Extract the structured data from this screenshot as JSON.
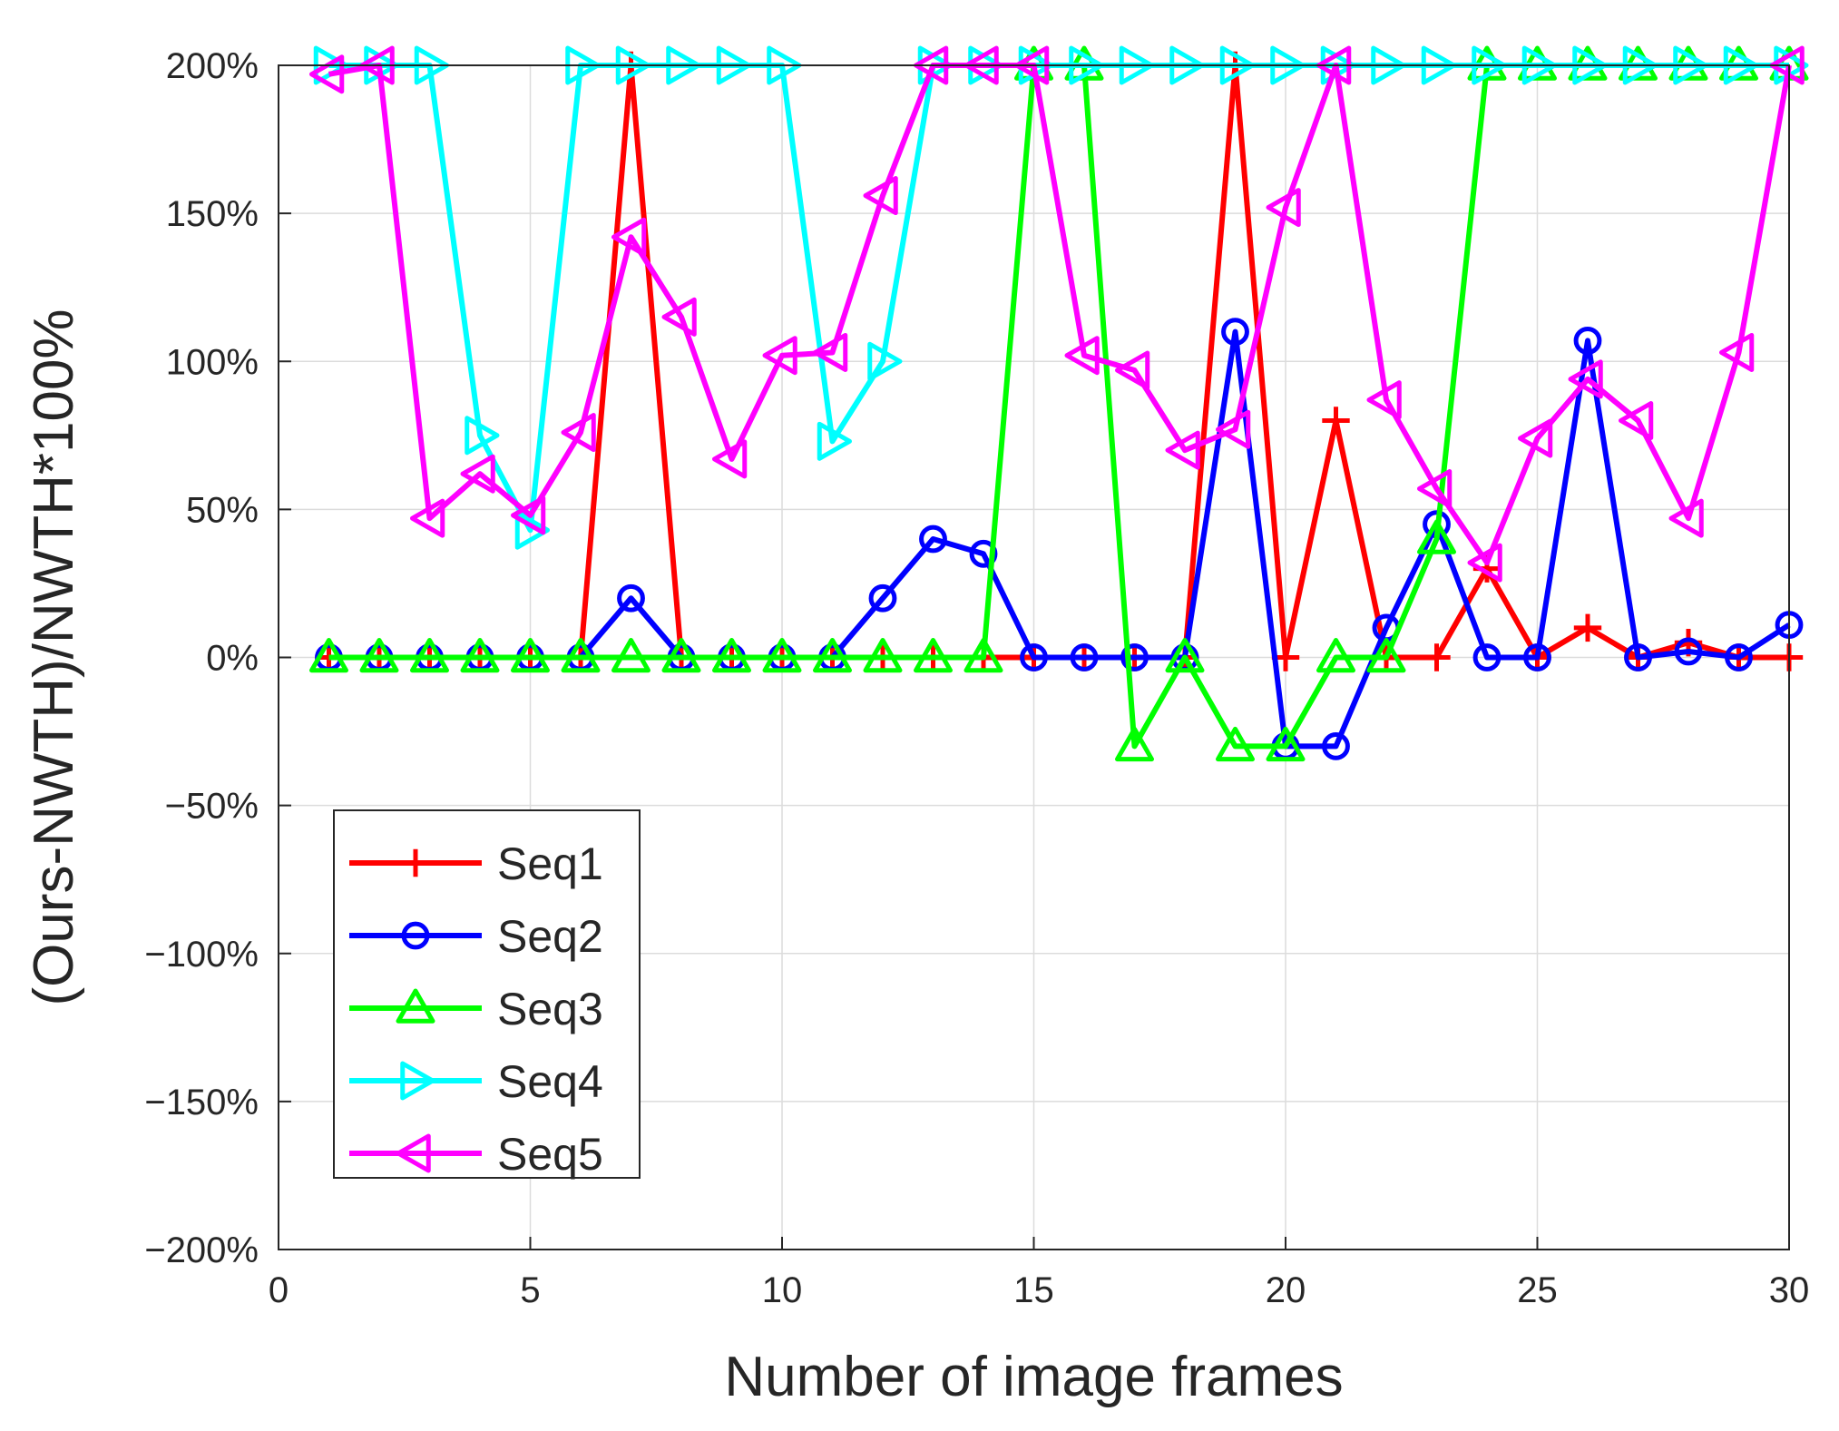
{
  "chart_data": {
    "type": "line",
    "xlabel": "Number of image frames",
    "ylabel": "(Ours-NWTH)/NWTH*100%",
    "xlim": [
      0,
      30
    ],
    "ylim": [
      -200,
      200
    ],
    "xticks": [
      0,
      5,
      10,
      15,
      20,
      25,
      30
    ],
    "xtick_labels": [
      "0",
      "5",
      "10",
      "15",
      "20",
      "25",
      "30"
    ],
    "yticks": [
      -200,
      -150,
      -100,
      -50,
      0,
      50,
      100,
      150,
      200
    ],
    "ytick_labels": [
      "−200%",
      "−150%",
      "−100%",
      "−50%",
      "0%",
      "50%",
      "100%",
      "150%",
      "200%"
    ],
    "grid": true,
    "legend_position": "bottom-left",
    "x": [
      1,
      2,
      3,
      4,
      5,
      6,
      7,
      8,
      9,
      10,
      11,
      12,
      13,
      14,
      15,
      16,
      17,
      18,
      19,
      20,
      21,
      22,
      23,
      24,
      25,
      26,
      27,
      28,
      29,
      30
    ],
    "series": [
      {
        "name": "Seq1",
        "color": "#ff0000",
        "marker": "plus",
        "values": [
          0,
          0,
          0,
          0,
          0,
          0,
          200,
          0,
          0,
          0,
          0,
          0,
          0,
          0,
          0,
          0,
          0,
          0,
          200,
          0,
          80,
          0,
          0,
          30,
          0,
          10,
          0,
          5,
          0,
          0
        ]
      },
      {
        "name": "Seq2",
        "color": "#0000ff",
        "marker": "circle",
        "values": [
          0,
          0,
          0,
          0,
          0,
          0,
          20,
          0,
          0,
          0,
          0,
          20,
          40,
          35,
          0,
          0,
          0,
          0,
          110,
          -30,
          -30,
          10,
          45,
          0,
          0,
          107,
          0,
          2,
          0,
          11
        ]
      },
      {
        "name": "Seq3",
        "color": "#00ff00",
        "marker": "triangle-up",
        "values": [
          0,
          0,
          0,
          0,
          0,
          0,
          0,
          0,
          0,
          0,
          0,
          0,
          0,
          0,
          200,
          200,
          -30,
          0,
          -30,
          -30,
          0,
          0,
          40,
          200,
          200,
          200,
          200,
          200,
          200,
          200
        ]
      },
      {
        "name": "Seq4",
        "color": "#00ffff",
        "marker": "triangle-right",
        "values": [
          200,
          200,
          200,
          75,
          43,
          200,
          200,
          200,
          200,
          200,
          73,
          100,
          200,
          200,
          200,
          200,
          200,
          200,
          200,
          200,
          200,
          200,
          200,
          200,
          200,
          200,
          200,
          200,
          200,
          200
        ]
      },
      {
        "name": "Seq5",
        "color": "#ff00ff",
        "marker": "triangle-left",
        "values": [
          197,
          200,
          47,
          62,
          48,
          76,
          142,
          115,
          67,
          102,
          103,
          156,
          200,
          200,
          200,
          102,
          97,
          70,
          77,
          152,
          200,
          87,
          57,
          32,
          74,
          94,
          80,
          47,
          103,
          200
        ]
      }
    ]
  }
}
